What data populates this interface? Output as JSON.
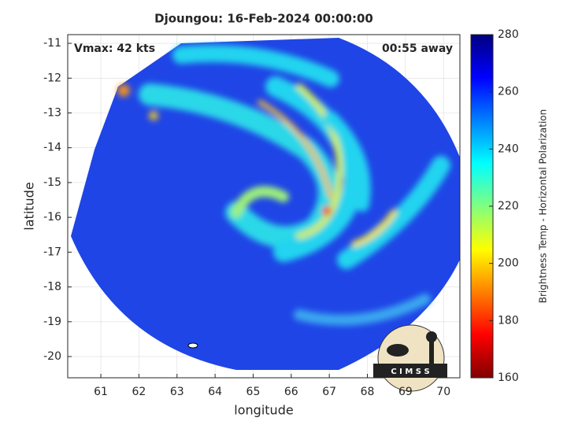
{
  "chart_data": {
    "type": "satellite-image",
    "title": "Djoungou: 16-Feb-2024 00:00:00",
    "annotations": [
      "Vmax: 42 kts",
      "00:55 away"
    ],
    "x_label": "longitude",
    "y_label": "latitude",
    "xlim": [
      60.13,
      70.43
    ],
    "xticks": [
      61,
      62,
      63,
      64,
      65,
      66,
      67,
      68,
      69,
      70
    ],
    "ylim": [
      -20.61,
      -10.75
    ],
    "yticks": [
      -11,
      -12,
      -13,
      -14,
      -15,
      -16,
      -17,
      -18,
      -19,
      -20
    ],
    "grid": true,
    "colorbar": {
      "label": "Brightness Temp - Horizontal Polarization",
      "lim": [
        160,
        280
      ],
      "ticks": [
        160,
        180,
        200,
        220,
        240,
        260,
        280
      ],
      "colormap": [
        "#800000",
        "#ff0000",
        "#ff8000",
        "#ffff00",
        "#80ff80",
        "#00ffff",
        "#0080ff",
        "#0000ff",
        "#000080"
      ]
    },
    "logo_text": "C I M S S"
  }
}
